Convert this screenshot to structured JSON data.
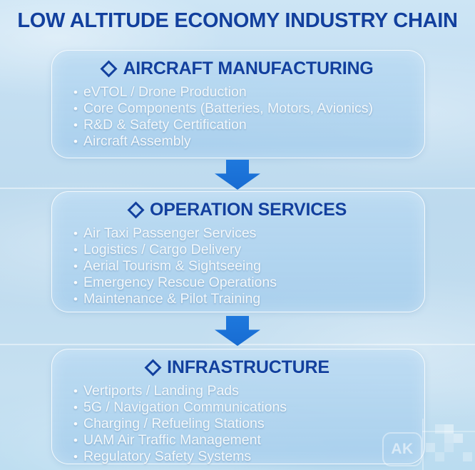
{
  "title": "LOW ALTITUDE ECONOMY INDUSTRY CHAIN",
  "bullet_char": "•",
  "colors": {
    "heading_navy": "#12409e",
    "arrow_blue": "#1b72d8",
    "background_blue": "#c3def1",
    "box_fill_blue": "#aed4f0",
    "box_border": "#ffffff",
    "bullet_text": "#f4f9fc"
  },
  "sections": [
    {
      "heading": "AIRCRAFT MANUFACTURING",
      "items": [
        "eVTOL / Drone Production",
        "Core Components (Batteries, Motors, Avionics)",
        "R&D & Safety Certification",
        "Aircraft Assembly"
      ]
    },
    {
      "heading": "OPERATION SERVICES",
      "items": [
        "Air Taxi Passenger Services",
        "Logistics / Cargo Delivery",
        "Aerial Tourism & Sightseeing",
        "Emergency Rescue Operations",
        "Maintenance & Pilot Training"
      ]
    },
    {
      "heading": "INFRASTRUCTURE",
      "items": [
        "Vertiports / Landing Pads",
        "5G / Navigation Communications",
        "Charging / Refueling Stations",
        "UAM Air Traffic Management",
        "Regulatory Safety Systems"
      ]
    }
  ],
  "watermark": {
    "label": "AK"
  }
}
